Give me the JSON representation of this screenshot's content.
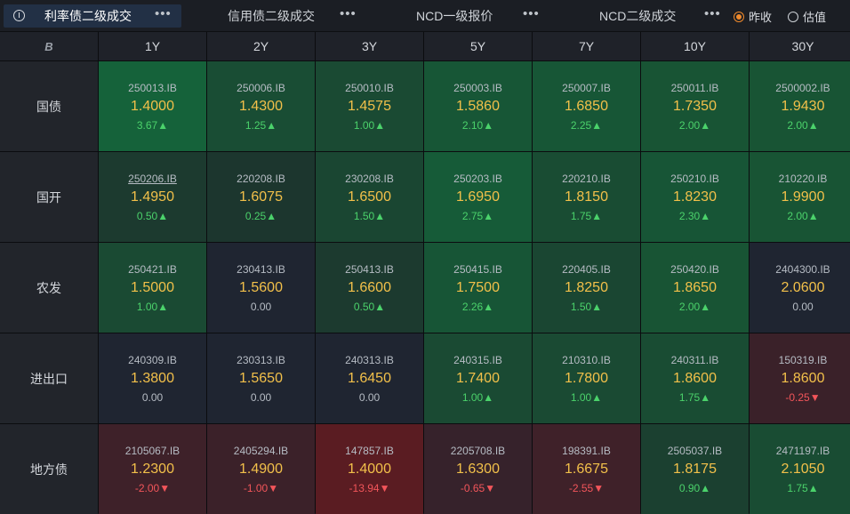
{
  "toolbar": {
    "tabs": [
      {
        "label": "利率债二级成交"
      },
      {
        "label": "信用债二级成交"
      },
      {
        "label": "NCD一级报价"
      },
      {
        "label": "NCD二级成交"
      }
    ],
    "more_label": "•••",
    "radio": [
      {
        "label": "昨收",
        "selected": true
      },
      {
        "label": "估值",
        "selected": false
      }
    ]
  },
  "table": {
    "corner_icon": "B",
    "columns": [
      "1Y",
      "2Y",
      "3Y",
      "5Y",
      "7Y",
      "10Y",
      "30Y"
    ],
    "rows": [
      {
        "label": "国债",
        "cells": [
          {
            "code": "250013.IB",
            "rate": "1.4000",
            "chg": "3.67▲",
            "dir": "up",
            "bg": "#15623a"
          },
          {
            "code": "250006.IB",
            "rate": "1.4300",
            "chg": "1.25▲",
            "dir": "up",
            "bg": "#194d34"
          },
          {
            "code": "250010.IB",
            "rate": "1.4575",
            "chg": "1.00▲",
            "dir": "up",
            "bg": "#1a4a33"
          },
          {
            "code": "250003.IB",
            "rate": "1.5860",
            "chg": "2.10▲",
            "dir": "up",
            "bg": "#175636"
          },
          {
            "code": "250007.IB",
            "rate": "1.6850",
            "chg": "2.25▲",
            "dir": "up",
            "bg": "#175636"
          },
          {
            "code": "250011.IB",
            "rate": "1.7350",
            "chg": "2.00▲",
            "dir": "up",
            "bg": "#185434"
          },
          {
            "code": "2500002.IB",
            "rate": "1.9430",
            "chg": "2.00▲",
            "dir": "up",
            "bg": "#185434"
          }
        ]
      },
      {
        "label": "国开",
        "cells": [
          {
            "code": "250206.IB",
            "rate": "1.4950",
            "chg": "0.50▲",
            "dir": "up",
            "bg": "#1c3a2f",
            "underline": true
          },
          {
            "code": "220208.IB",
            "rate": "1.6075",
            "chg": "0.25▲",
            "dir": "up",
            "bg": "#1c362e"
          },
          {
            "code": "230208.IB",
            "rate": "1.6500",
            "chg": "1.50▲",
            "dir": "up",
            "bg": "#1a4632"
          },
          {
            "code": "250203.IB",
            "rate": "1.6950",
            "chg": "2.75▲",
            "dir": "up",
            "bg": "#165b38"
          },
          {
            "code": "220210.IB",
            "rate": "1.8150",
            "chg": "1.75▲",
            "dir": "up",
            "bg": "#194c33"
          },
          {
            "code": "250210.IB",
            "rate": "1.8230",
            "chg": "2.30▲",
            "dir": "up",
            "bg": "#175536"
          },
          {
            "code": "210220.IB",
            "rate": "1.9900",
            "chg": "2.00▲",
            "dir": "up",
            "bg": "#185434"
          }
        ]
      },
      {
        "label": "农发",
        "cells": [
          {
            "code": "250421.IB",
            "rate": "1.5000",
            "chg": "1.00▲",
            "dir": "up",
            "bg": "#1a4a33"
          },
          {
            "code": "230413.IB",
            "rate": "1.5600",
            "chg": "0.00",
            "dir": "flat",
            "bg": "#1f2531"
          },
          {
            "code": "250413.IB",
            "rate": "1.6600",
            "chg": "0.50▲",
            "dir": "up",
            "bg": "#1c3a2f"
          },
          {
            "code": "250415.IB",
            "rate": "1.7500",
            "chg": "2.26▲",
            "dir": "up",
            "bg": "#175536"
          },
          {
            "code": "220405.IB",
            "rate": "1.8250",
            "chg": "1.50▲",
            "dir": "up",
            "bg": "#1a4632"
          },
          {
            "code": "250420.IB",
            "rate": "1.8650",
            "chg": "2.00▲",
            "dir": "up",
            "bg": "#185434"
          },
          {
            "code": "2404300.IB",
            "rate": "2.0600",
            "chg": "0.00",
            "dir": "flat",
            "bg": "#1f2531"
          }
        ]
      },
      {
        "label": "进出口",
        "cells": [
          {
            "code": "240309.IB",
            "rate": "1.3800",
            "chg": "0.00",
            "dir": "flat",
            "bg": "#1f2531"
          },
          {
            "code": "230313.IB",
            "rate": "1.5650",
            "chg": "0.00",
            "dir": "flat",
            "bg": "#1f2531"
          },
          {
            "code": "240313.IB",
            "rate": "1.6450",
            "chg": "0.00",
            "dir": "flat",
            "bg": "#1f2531"
          },
          {
            "code": "240315.IB",
            "rate": "1.7400",
            "chg": "1.00▲",
            "dir": "up",
            "bg": "#1a4a33"
          },
          {
            "code": "210310.IB",
            "rate": "1.7800",
            "chg": "1.00▲",
            "dir": "up",
            "bg": "#1a4a33"
          },
          {
            "code": "240311.IB",
            "rate": "1.8600",
            "chg": "1.75▲",
            "dir": "up",
            "bg": "#194c33"
          },
          {
            "code": "150319.IB",
            "rate": "1.8600",
            "chg": "-0.25▼",
            "dir": "down",
            "bg": "#3a2129"
          }
        ]
      },
      {
        "label": "地方债",
        "cells": [
          {
            "code": "2105067.IB",
            "rate": "1.2300",
            "chg": "-2.00▼",
            "dir": "down",
            "bg": "#3e2129"
          },
          {
            "code": "2405294.IB",
            "rate": "1.4900",
            "chg": "-1.00▼",
            "dir": "down",
            "bg": "#3b2129"
          },
          {
            "code": "147857.IB",
            "rate": "1.4000",
            "chg": "-13.94▼",
            "dir": "down",
            "bg": "#5a1c22"
          },
          {
            "code": "2205708.IB",
            "rate": "1.6300",
            "chg": "-0.65▼",
            "dir": "down",
            "bg": "#36222b"
          },
          {
            "code": "198391.IB",
            "rate": "1.6675",
            "chg": "-2.55▼",
            "dir": "down",
            "bg": "#3f2129"
          },
          {
            "code": "2505037.IB",
            "rate": "1.8175",
            "chg": "0.90▲",
            "dir": "up",
            "bg": "#1b4030"
          },
          {
            "code": "2471197.IB",
            "rate": "2.1050",
            "chg": "1.75▲",
            "dir": "up",
            "bg": "#194c33"
          }
        ]
      }
    ]
  }
}
